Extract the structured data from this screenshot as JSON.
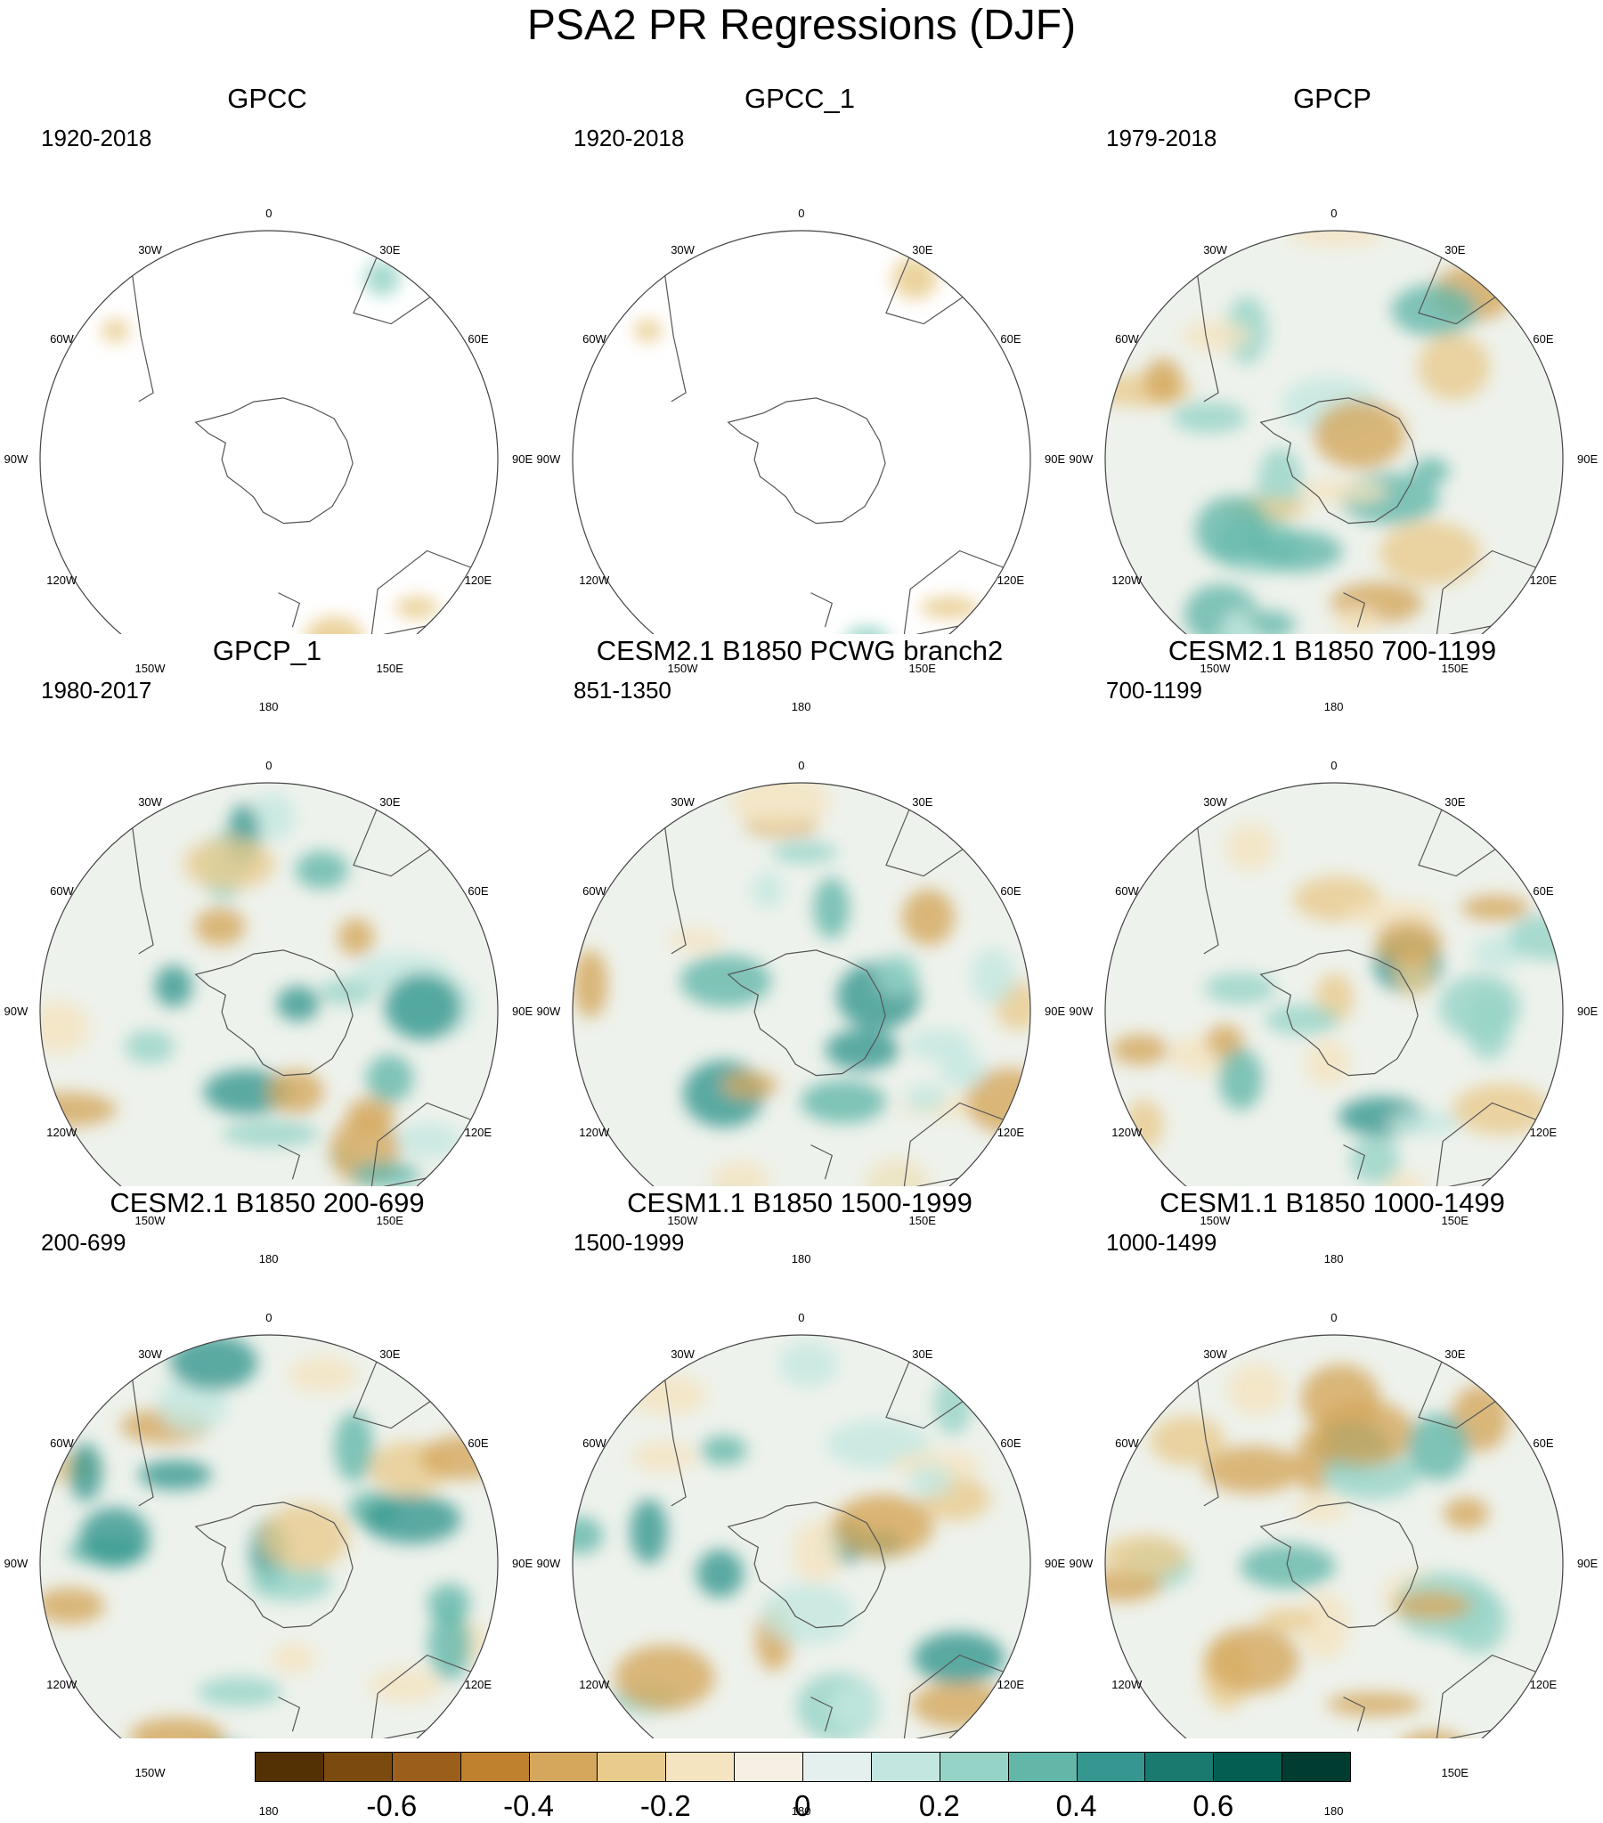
{
  "title": "PSA2 PR Regressions (DJF)",
  "lon_labels": [
    "0",
    "30E",
    "60E",
    "90E",
    "120E",
    "150E",
    "180",
    "150W",
    "120W",
    "90W",
    "60W",
    "30W"
  ],
  "panels": [
    {
      "title": "GPCC",
      "period": "1920-2018",
      "coverage": "land"
    },
    {
      "title": "GPCC_1",
      "period": "1920-2018",
      "coverage": "land"
    },
    {
      "title": "GPCP",
      "period": "1979-2018",
      "coverage": "global"
    },
    {
      "title": "GPCP_1",
      "period": "1980-2017",
      "coverage": "global"
    },
    {
      "title": "CESM2.1 B1850 PCWG branch2",
      "period": "851-1350",
      "coverage": "global"
    },
    {
      "title": "CESM2.1 B1850 700-1199",
      "period": "700-1199",
      "coverage": "global"
    },
    {
      "title": "CESM2.1 B1850 200-699",
      "period": "200-699",
      "coverage": "global"
    },
    {
      "title": "CESM1.1 B1850 1500-1999",
      "period": "1500-1999",
      "coverage": "global"
    },
    {
      "title": "CESM1.1 B1850 1000-1499",
      "period": "1000-1499",
      "coverage": "global"
    }
  ],
  "colorbar": {
    "colors": [
      "#543005",
      "#7b4a0f",
      "#9c5e1b",
      "#bf812d",
      "#d4a75c",
      "#e8cb8d",
      "#f4e4bf",
      "#f5f0e3",
      "#e4f0ee",
      "#c3e7e0",
      "#96d3c7",
      "#62b7a9",
      "#35978f",
      "#1a7a70",
      "#045e52",
      "#003c30"
    ],
    "tick_labels": [
      "-0.6",
      "-0.4",
      "-0.2",
      "0",
      "0.2",
      "0.4",
      "0.6"
    ]
  }
}
